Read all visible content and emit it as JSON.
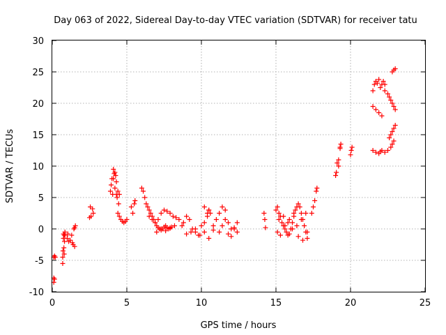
{
  "chart_data": {
    "type": "scatter",
    "title": "Day 063 of 2022, Sidereal Day-to-day VTEC variation (SDTVAR) for receiver tatu",
    "xlabel": "GPS time / hours",
    "ylabel": "SDTVAR / TECUs",
    "xlim": [
      0,
      25
    ],
    "ylim": [
      -10,
      30
    ],
    "xticks": [
      "0",
      "5",
      "10",
      "15",
      "20",
      "25"
    ],
    "yticks": [
      "-10",
      "-5",
      "0",
      "5",
      "10",
      "15",
      "20",
      "25",
      "30"
    ],
    "grid": true,
    "marker": "plus",
    "color": "#ff0000",
    "series": [
      {
        "name": "SDTVAR",
        "x": [
          0.1,
          0.1,
          0.1,
          0.15,
          0.15,
          0.2,
          0.7,
          0.7,
          0.72,
          0.75,
          0.75,
          0.78,
          0.8,
          0.8,
          0.82,
          0.85,
          0.85,
          1.0,
          1.05,
          1.1,
          1.2,
          1.3,
          1.35,
          1.4,
          1.45,
          1.5,
          1.55,
          1.5,
          2.5,
          2.55,
          2.6,
          2.7,
          2.75,
          3.9,
          3.95,
          4.0,
          4.05,
          4.1,
          4.15,
          4.2,
          4.25,
          4.3,
          4.35,
          4.4,
          4.45,
          4.5,
          4.4,
          4.5,
          4.6,
          4.7,
          4.8,
          4.9,
          5.0,
          4.3,
          4.2,
          4.1,
          5.3,
          5.4,
          5.5,
          5.55,
          6.0,
          6.1,
          6.2,
          6.3,
          6.4,
          6.5,
          6.6,
          6.7,
          6.8,
          6.9,
          7.0,
          7.1,
          7.2,
          7.3,
          7.4,
          7.5,
          7.6,
          7.7,
          7.8,
          7.9,
          8.0,
          6.5,
          6.7,
          6.9,
          7.1,
          7.3,
          7.5,
          7.7,
          7.9,
          8.1,
          8.3,
          8.5,
          7.0,
          7.3,
          7.6,
          7.9,
          8.2,
          8.7,
          8.8,
          9.0,
          9.2,
          9.4,
          9.6,
          9.8,
          10.0,
          10.2,
          10.4,
          10.5,
          9.0,
          9.3,
          9.6,
          9.9,
          10.2,
          10.5,
          10.8,
          10.2,
          10.4,
          10.5,
          10.6,
          10.8,
          11.0,
          11.2,
          11.4,
          11.6,
          11.8,
          12.0,
          11.2,
          11.4,
          11.6,
          11.8,
          12.0,
          12.2,
          12.4,
          12.2,
          12.4,
          14.2,
          14.25,
          14.3,
          15.0,
          15.1,
          15.2,
          15.3,
          15.4,
          15.5,
          15.6,
          15.7,
          15.8,
          15.9,
          16.0,
          16.1,
          16.2,
          16.3,
          16.4,
          16.5,
          16.6,
          16.7,
          16.8,
          16.9,
          17.0,
          17.1,
          15.1,
          15.3,
          15.6,
          15.9,
          16.2,
          16.5,
          16.8,
          17.1,
          15.2,
          15.5,
          15.8,
          16.1,
          16.4,
          16.7,
          17.0,
          17.4,
          17.5,
          17.6,
          17.7,
          17.75,
          19.0,
          19.05,
          19.1,
          19.2,
          19.3,
          19.35,
          19.2,
          19.3,
          20.0,
          20.05,
          20.1,
          21.5,
          21.6,
          21.7,
          21.8,
          21.9,
          22.0,
          22.1,
          22.2,
          22.3,
          21.5,
          21.7,
          21.9,
          22.0,
          22.1,
          21.5,
          21.7,
          21.9,
          22.1,
          22.3,
          22.5,
          22.7,
          22.8,
          22.9,
          22.3,
          22.5,
          22.6,
          22.7,
          22.8,
          22.9,
          23.0,
          23.0,
          22.9,
          22.8,
          22.7,
          22.6,
          22.8,
          22.9,
          23.0
        ],
        "y": [
          -4.5,
          -7.8,
          -8.5,
          -4.3,
          -8.0,
          -4.5,
          -5.5,
          -4.5,
          -3.5,
          -1.5,
          -0.8,
          -3.0,
          -1.0,
          -4.0,
          -2.0,
          -1.0,
          -0.5,
          -1.5,
          -0.8,
          -2.0,
          -1.8,
          -1.0,
          -2.2,
          -2.5,
          0.0,
          -2.8,
          0.5,
          0.2,
          1.8,
          3.5,
          2.0,
          3.2,
          2.5,
          6.0,
          7.0,
          8.0,
          5.5,
          9.5,
          8.8,
          9.0,
          8.5,
          7.5,
          5.0,
          6.0,
          4.0,
          5.5,
          2.5,
          2.0,
          1.5,
          1.2,
          1.0,
          1.2,
          1.5,
          5.5,
          6.5,
          8.0,
          3.5,
          2.5,
          4.0,
          4.5,
          6.5,
          6.0,
          5.0,
          4.0,
          3.5,
          3.0,
          2.5,
          2.0,
          1.5,
          1.0,
          0.5,
          0.2,
          0.0,
          -0.2,
          0.0,
          0.3,
          0.5,
          0.2,
          0.0,
          0.1,
          0.3,
          2.0,
          1.5,
          1.0,
          1.5,
          2.5,
          3.0,
          2.8,
          2.5,
          2.0,
          1.8,
          1.5,
          -0.5,
          0.0,
          -0.3,
          0.2,
          0.5,
          0.5,
          1.0,
          2.0,
          1.5,
          0.0,
          -0.5,
          -1.0,
          0.5,
          1.0,
          2.5,
          3.0,
          -0.8,
          -0.5,
          0.0,
          -1.0,
          -0.5,
          -1.5,
          -0.2,
          3.5,
          2.0,
          3.0,
          2.5,
          0.5,
          1.5,
          2.5,
          3.5,
          3.0,
          1.0,
          0.0,
          -0.5,
          0.5,
          1.5,
          -0.8,
          -1.2,
          0.0,
          1.0,
          0.2,
          -0.5,
          2.5,
          1.5,
          0.2,
          3.0,
          3.5,
          2.5,
          2.0,
          1.0,
          0.5,
          0.0,
          -0.5,
          -1.0,
          -0.8,
          0.0,
          1.0,
          2.0,
          3.0,
          3.5,
          4.0,
          3.5,
          2.5,
          1.5,
          0.5,
          -0.5,
          -1.5,
          -0.5,
          -1.0,
          0.5,
          1.5,
          2.5,
          -1.2,
          -1.8,
          -0.5,
          1.5,
          2.0,
          1.0,
          0.0,
          0.5,
          1.5,
          2.5,
          2.5,
          3.5,
          4.5,
          6.0,
          6.5,
          8.5,
          9.0,
          10.5,
          11.0,
          12.8,
          13.5,
          10.0,
          13.0,
          11.8,
          12.5,
          13.0,
          22.0,
          23.0,
          23.5,
          23.2,
          23.8,
          22.5,
          23.0,
          23.5,
          23.0,
          12.5,
          12.2,
          12.0,
          12.3,
          12.5,
          19.5,
          19.0,
          18.5,
          18.0,
          12.2,
          12.5,
          13.0,
          13.5,
          14.0,
          22.0,
          21.5,
          21.0,
          20.5,
          20.0,
          19.5,
          19.0,
          16.5,
          16.0,
          15.5,
          15.0,
          14.5,
          25.0,
          25.3,
          25.5
        ]
      }
    ]
  }
}
